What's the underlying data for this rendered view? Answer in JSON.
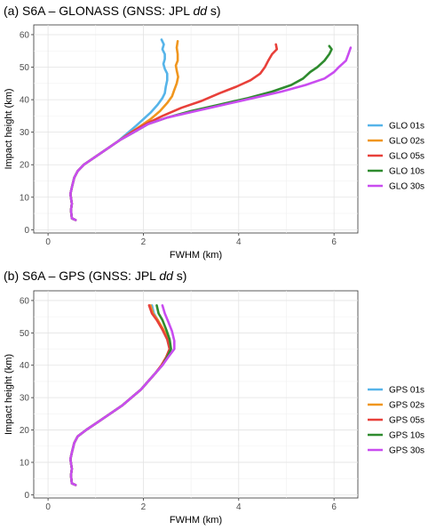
{
  "chart_data": [
    {
      "type": "line",
      "title_prefix": "(a) S6A – GLONASS (GNSS: JPL ",
      "title_italic": "dd",
      "title_suffix": " s)",
      "xlabel": "FWHM (km)",
      "ylabel": "Impact height (km)",
      "xlim": [
        -0.3,
        6.5
      ],
      "ylim": [
        -1,
        63
      ],
      "xticks": [
        0,
        2,
        4,
        6
      ],
      "yticks": [
        0,
        10,
        20,
        30,
        40,
        50,
        60
      ],
      "grid": true,
      "legend_position": "right",
      "series": [
        {
          "name": "GLO 01s",
          "color": "#56B4E9",
          "x": [
            0.58,
            0.5,
            0.48,
            0.5,
            0.47,
            0.5,
            0.55,
            0.62,
            0.75,
            1.0,
            1.25,
            1.45,
            1.65,
            1.85,
            2.0,
            2.15,
            2.3,
            2.4,
            2.45,
            2.47,
            2.5,
            2.5,
            2.45,
            2.42,
            2.45,
            2.45,
            2.4,
            2.43,
            2.38
          ],
          "y": [
            3,
            3.5,
            6,
            8,
            11,
            13,
            16,
            18,
            20,
            22.5,
            25,
            27,
            29.5,
            32,
            34,
            36,
            38.5,
            40.5,
            42,
            44,
            46,
            48,
            49.5,
            51,
            52.5,
            54,
            55.5,
            57,
            58.5
          ]
        },
        {
          "name": "GLO 02s",
          "color": "#F0961E",
          "x": [
            0.58,
            0.5,
            0.48,
            0.5,
            0.47,
            0.5,
            0.55,
            0.62,
            0.75,
            1.0,
            1.25,
            1.45,
            1.7,
            1.95,
            2.15,
            2.35,
            2.5,
            2.6,
            2.65,
            2.7,
            2.73,
            2.7,
            2.68,
            2.72,
            2.72,
            2.7,
            2.72
          ],
          "y": [
            3,
            3.5,
            6,
            8,
            11,
            13,
            16,
            18,
            20,
            22.5,
            25,
            27,
            29.5,
            32,
            34,
            36.5,
            39,
            41,
            43,
            45,
            47,
            49,
            50.5,
            52,
            54,
            56,
            58
          ]
        },
        {
          "name": "GLO 05s",
          "color": "#E8403A",
          "x": [
            0.58,
            0.5,
            0.48,
            0.5,
            0.47,
            0.5,
            0.55,
            0.62,
            0.75,
            1.0,
            1.25,
            1.5,
            1.75,
            2.05,
            2.4,
            2.8,
            3.2,
            3.6,
            3.95,
            4.25,
            4.45,
            4.55,
            4.62,
            4.7,
            4.8,
            4.78
          ],
          "y": [
            3,
            3.5,
            6,
            8,
            11,
            13,
            16,
            18,
            20,
            22.5,
            25,
            27.5,
            30,
            32.5,
            35,
            37.5,
            39.5,
            42,
            44,
            46,
            48,
            50,
            52,
            54,
            55.5,
            57
          ]
        },
        {
          "name": "GLO 10s",
          "color": "#2E8B2E",
          "x": [
            0.58,
            0.5,
            0.48,
            0.5,
            0.47,
            0.5,
            0.55,
            0.62,
            0.75,
            1.0,
            1.25,
            1.5,
            1.8,
            2.1,
            2.5,
            3.0,
            3.6,
            4.2,
            4.7,
            5.1,
            5.35,
            5.5,
            5.65,
            5.8,
            5.9,
            5.95,
            5.9
          ],
          "y": [
            3,
            3.5,
            6,
            8,
            11,
            13,
            16,
            18,
            20,
            22.5,
            25,
            27.5,
            30,
            32.5,
            34.5,
            36.5,
            38.5,
            40.5,
            42.5,
            44.5,
            46.5,
            48.5,
            50,
            52,
            54,
            55.5,
            56.5
          ]
        },
        {
          "name": "GLO 30s",
          "color": "#C94CF0",
          "x": [
            0.58,
            0.5,
            0.48,
            0.5,
            0.47,
            0.5,
            0.55,
            0.62,
            0.75,
            1.0,
            1.25,
            1.5,
            1.8,
            2.1,
            2.5,
            3.1,
            3.7,
            4.3,
            4.9,
            5.4,
            5.8,
            6.0,
            6.1,
            6.25,
            6.3,
            6.35
          ],
          "y": [
            3,
            3.5,
            6,
            8,
            11,
            13,
            16,
            18,
            20,
            22.5,
            25,
            27.5,
            30,
            32.5,
            34.5,
            36.5,
            38.5,
            40.5,
            42.5,
            44.5,
            46.5,
            48.5,
            50,
            52,
            54,
            56
          ]
        }
      ]
    },
    {
      "type": "line",
      "title_prefix": "(b) S6A – GPS (GNSS: JPL ",
      "title_italic": "dd",
      "title_suffix": " s)",
      "xlabel": "FWHM (km)",
      "ylabel": "Impact height (km)",
      "xlim": [
        -0.3,
        6.5
      ],
      "ylim": [
        -1,
        63
      ],
      "xticks": [
        0,
        2,
        4,
        6
      ],
      "yticks": [
        0,
        10,
        20,
        30,
        40,
        50,
        60
      ],
      "grid": true,
      "legend_position": "right",
      "series": [
        {
          "name": "GPS 01s",
          "color": "#56B4E9",
          "x": [
            0.58,
            0.5,
            0.48,
            0.5,
            0.47,
            0.5,
            0.55,
            0.62,
            0.8,
            1.05,
            1.3,
            1.55,
            1.75,
            1.95,
            2.1,
            2.25,
            2.38,
            2.48,
            2.55,
            2.5,
            2.4,
            2.3,
            2.22,
            2.18
          ],
          "y": [
            3,
            3.5,
            6,
            8,
            11,
            13,
            16,
            18,
            20,
            22.5,
            25,
            27.5,
            30,
            32.5,
            35,
            37.5,
            40,
            42.5,
            45,
            48,
            51,
            54,
            56,
            58.5
          ]
        },
        {
          "name": "GPS 02s",
          "color": "#F0961E",
          "x": [
            0.58,
            0.5,
            0.48,
            0.5,
            0.47,
            0.5,
            0.55,
            0.62,
            0.8,
            1.05,
            1.3,
            1.55,
            1.75,
            1.95,
            2.1,
            2.25,
            2.38,
            2.48,
            2.55,
            2.52,
            2.42,
            2.3,
            2.2,
            2.15
          ],
          "y": [
            3,
            3.5,
            6,
            8,
            11,
            13,
            16,
            18,
            20,
            22.5,
            25,
            27.5,
            30,
            32.5,
            35,
            37.5,
            40,
            42.5,
            45,
            48,
            51,
            54,
            56,
            58.5
          ]
        },
        {
          "name": "GPS 05s",
          "color": "#E8403A",
          "x": [
            0.58,
            0.5,
            0.48,
            0.5,
            0.47,
            0.5,
            0.55,
            0.62,
            0.8,
            1.05,
            1.3,
            1.55,
            1.75,
            1.95,
            2.1,
            2.25,
            2.38,
            2.48,
            2.55,
            2.5,
            2.4,
            2.28,
            2.18,
            2.12
          ],
          "y": [
            3,
            3.5,
            6,
            8,
            11,
            13,
            16,
            18,
            20,
            22.5,
            25,
            27.5,
            30,
            32.5,
            35,
            37.5,
            40,
            42.5,
            45,
            48,
            51,
            54,
            56,
            58.5
          ]
        },
        {
          "name": "GPS 10s",
          "color": "#2E8B2E",
          "x": [
            0.58,
            0.5,
            0.48,
            0.5,
            0.47,
            0.5,
            0.55,
            0.62,
            0.8,
            1.05,
            1.3,
            1.55,
            1.75,
            1.95,
            2.1,
            2.25,
            2.4,
            2.5,
            2.58,
            2.55,
            2.48,
            2.4,
            2.32,
            2.28
          ],
          "y": [
            3,
            3.5,
            6,
            8,
            11,
            13,
            16,
            18,
            20,
            22.5,
            25,
            27.5,
            30,
            32.5,
            35,
            37.5,
            40,
            42.5,
            45,
            48,
            51,
            54,
            56,
            58.5
          ]
        },
        {
          "name": "GPS 30s",
          "color": "#C94CF0",
          "x": [
            0.58,
            0.5,
            0.48,
            0.5,
            0.47,
            0.5,
            0.55,
            0.62,
            0.8,
            1.05,
            1.3,
            1.55,
            1.75,
            1.95,
            2.1,
            2.25,
            2.4,
            2.52,
            2.65,
            2.65,
            2.6,
            2.52,
            2.45,
            2.4
          ],
          "y": [
            3,
            3.5,
            6,
            8,
            11,
            13,
            16,
            18,
            20,
            22.5,
            25,
            27.5,
            30,
            32.5,
            35,
            37.5,
            40,
            42.5,
            45,
            47.5,
            50.5,
            53.5,
            56,
            58.5
          ]
        }
      ]
    }
  ]
}
